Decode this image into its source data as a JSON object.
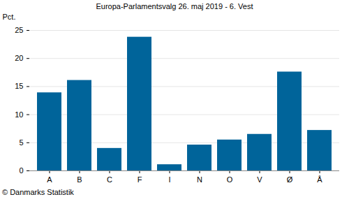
{
  "chart_data": {
    "type": "bar",
    "title": "Europa-Parlamentsvalg 26. maj 2019 - 6. Vest",
    "y_label": "Pct.",
    "caption": "© Danmarks Statistik",
    "categories": [
      "A",
      "B",
      "C",
      "F",
      "I",
      "N",
      "O",
      "V",
      "Ø",
      "Å"
    ],
    "values": [
      13.9,
      16.1,
      4.0,
      23.8,
      1.1,
      4.6,
      5.5,
      6.5,
      17.6,
      7.2
    ],
    "color": "#00649a",
    "ylim": [
      0,
      25
    ],
    "yticks": [
      0,
      5,
      10,
      15,
      20,
      25
    ],
    "grid": true
  }
}
